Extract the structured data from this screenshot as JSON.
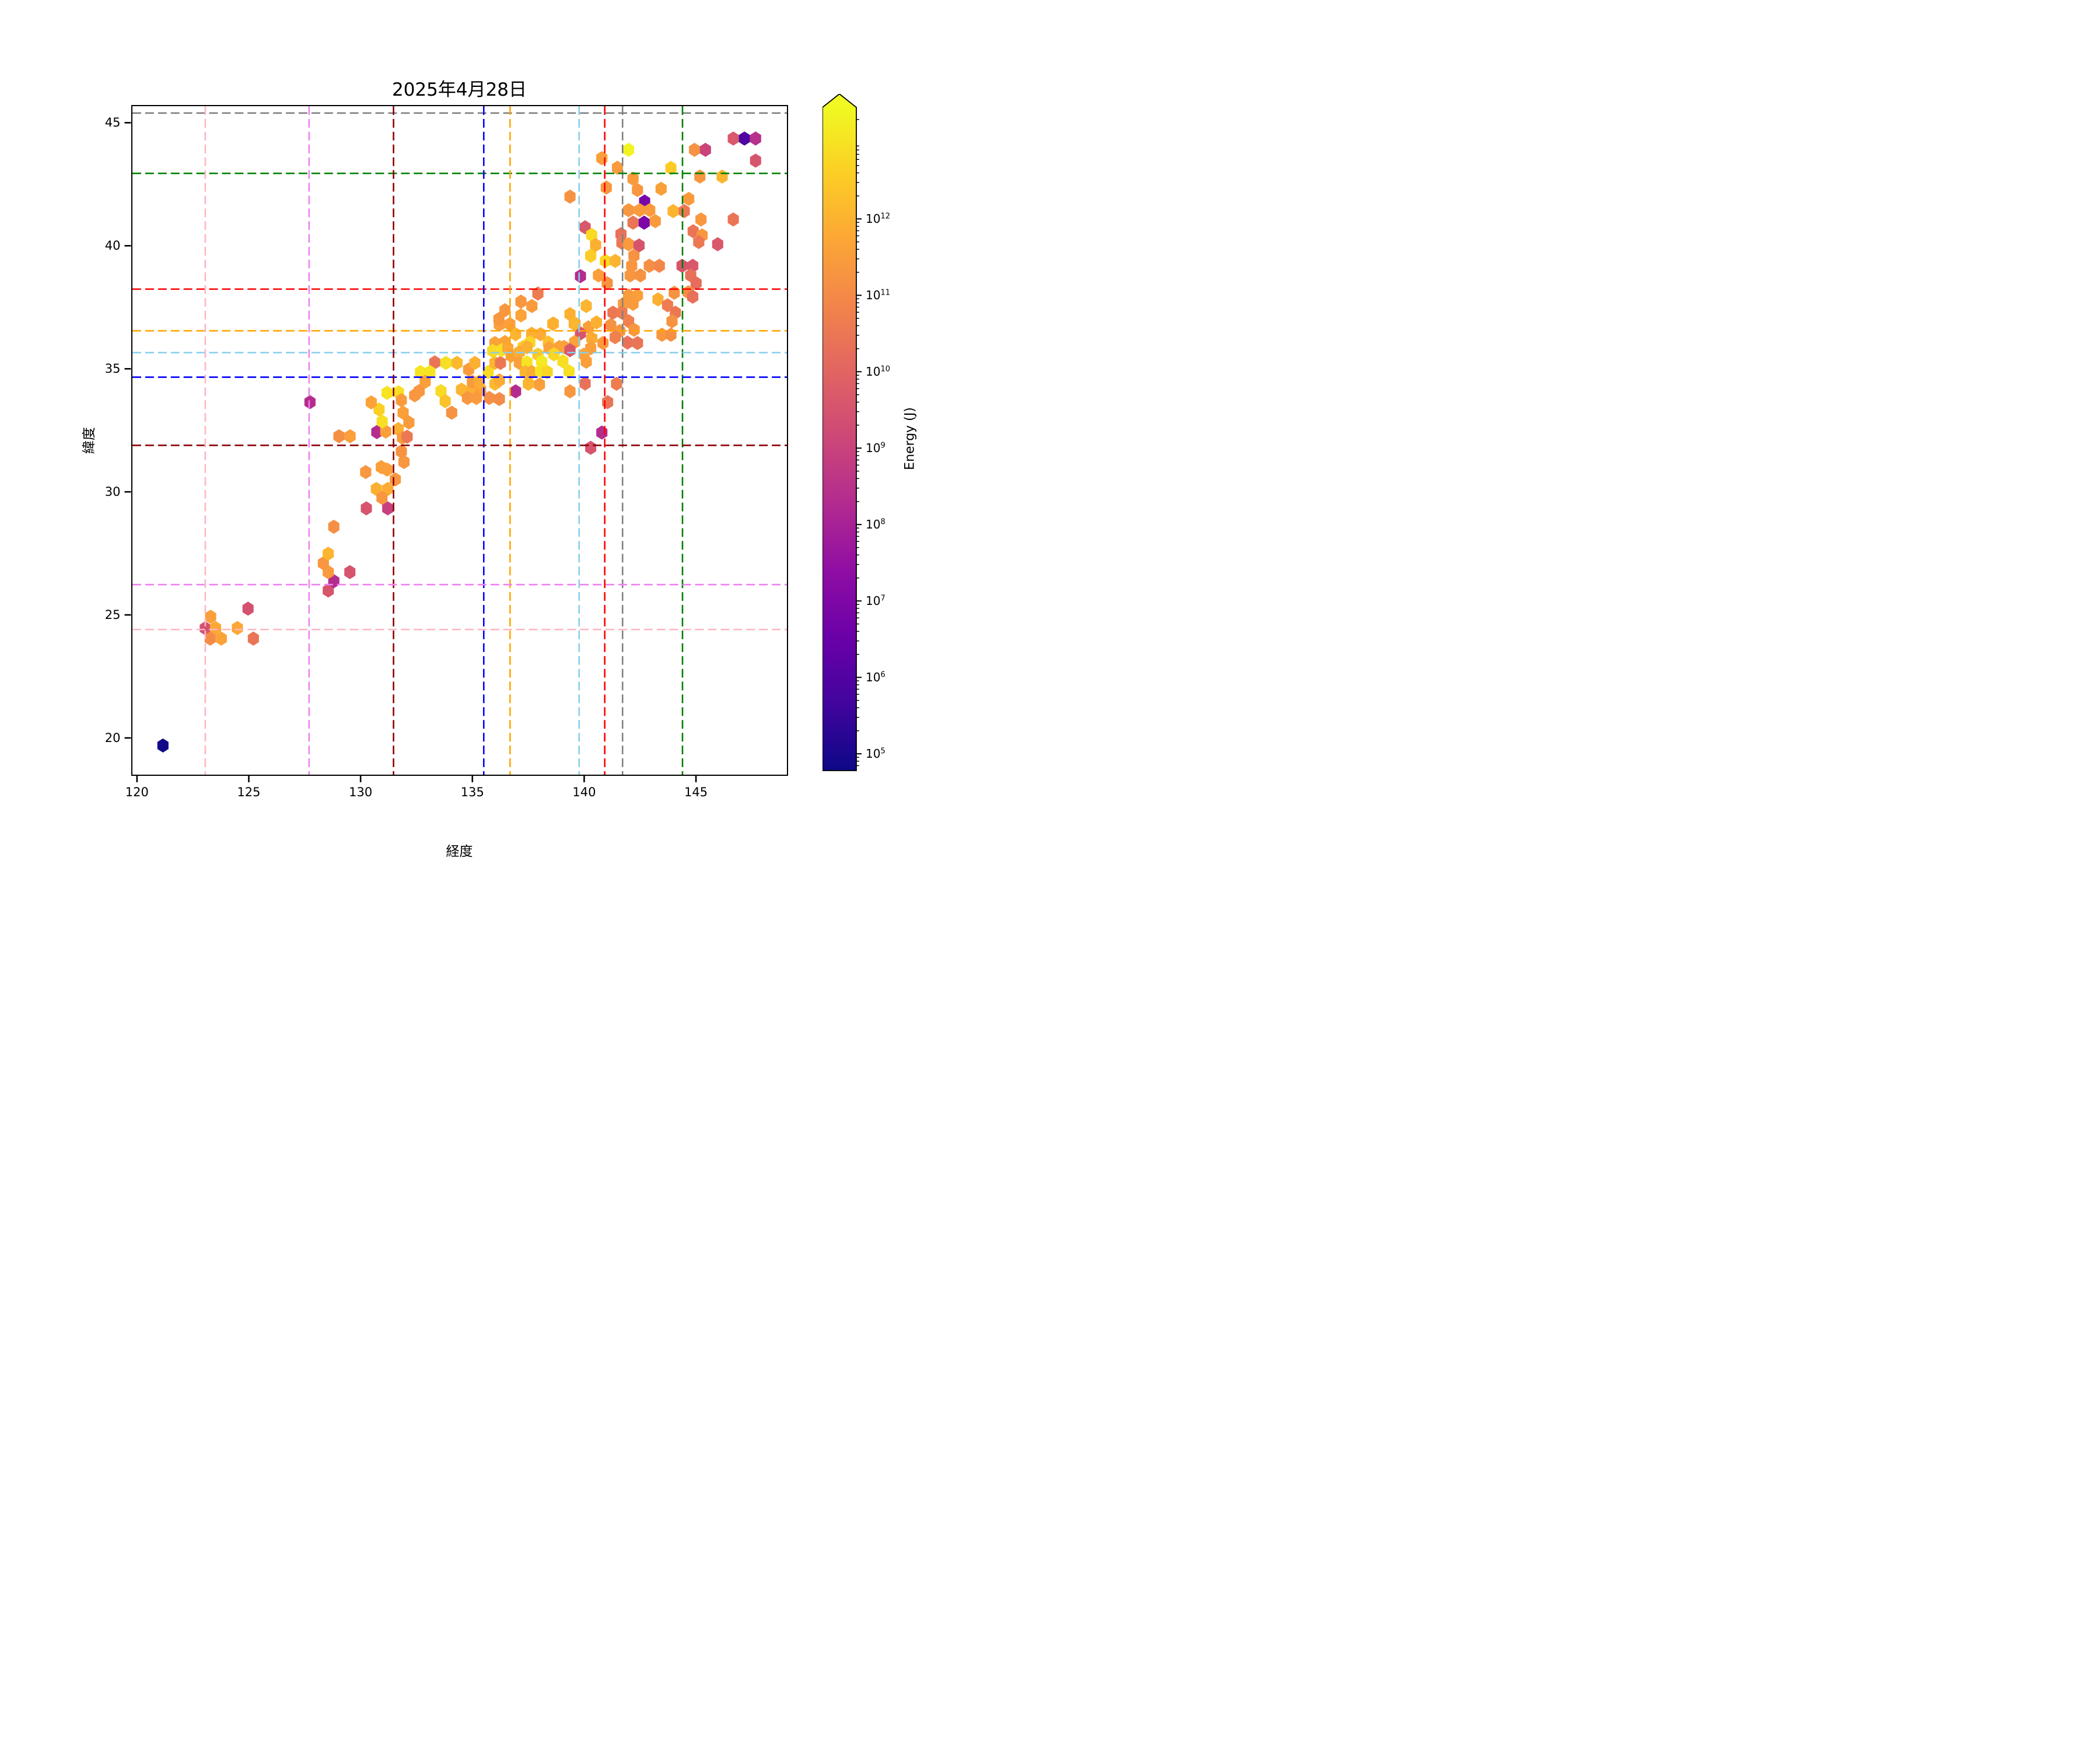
{
  "chart_data": {
    "type": "hexbin",
    "title": "2025年4月28日",
    "xlabel": "経度",
    "ylabel": "緯度",
    "xlim": [
      119.73,
      149.12
    ],
    "ylim": [
      18.46,
      45.72
    ],
    "xticks": [
      120,
      125,
      130,
      135,
      140,
      145
    ],
    "yticks": [
      20,
      25,
      30,
      35,
      40,
      45
    ],
    "grid": false,
    "hex_width_deg": 0.5,
    "colormap": "plasma_r",
    "colormap_stops": [
      "#0d0887",
      "#41049d",
      "#6a00a8",
      "#8f0da4",
      "#b12a90",
      "#cc4778",
      "#e16462",
      "#f2844b",
      "#fca636",
      "#fcce25",
      "#f0f921"
    ],
    "colorbar": {
      "label": "Energy (J)",
      "scale": "log",
      "tick_exponents": [
        5,
        6,
        7,
        8,
        9,
        10,
        11,
        12
      ],
      "log_min": 4.78,
      "log_max": 13.46,
      "extend": "max",
      "extend_color": "#0d0887"
    },
    "reference_lines": [
      {
        "color_name": "gray",
        "hex": "#808080",
        "lon": 141.73,
        "lat": 45.44
      },
      {
        "color_name": "green",
        "hex": "#008000",
        "lon": 144.42,
        "lat": 42.98
      },
      {
        "color_name": "red",
        "hex": "#ff0000",
        "lon": 140.93,
        "lat": 38.26
      },
      {
        "color_name": "orange",
        "hex": "#ffa500",
        "lon": 136.68,
        "lat": 36.56
      },
      {
        "color_name": "skyblue",
        "hex": "#87ceeb",
        "lon": 139.78,
        "lat": 35.67
      },
      {
        "color_name": "blue",
        "hex": "#0000ff",
        "lon": 135.5,
        "lat": 34.67
      },
      {
        "color_name": "darkred",
        "hex": "#8b0000",
        "lon": 131.45,
        "lat": 31.89
      },
      {
        "color_name": "violet",
        "hex": "#ee82ee",
        "lon": 127.66,
        "lat": 26.21
      },
      {
        "color_name": "pink",
        "hex": "#ffb6c1",
        "lon": 123.0,
        "lat": 24.38
      }
    ],
    "points_format": [
      "lon",
      "lat",
      "log10_energy_J"
    ],
    "points": [
      [
        121.1,
        19.65,
        13.4
      ],
      [
        123.0,
        24.43,
        8.8
      ],
      [
        123.46,
        24.44,
        6.5
      ],
      [
        124.44,
        24.44,
        6.5
      ],
      [
        123.24,
        24.9,
        6.7
      ],
      [
        123.22,
        24.01,
        7.2
      ],
      [
        123.72,
        24.01,
        6.6
      ],
      [
        125.16,
        24.01,
        7.8
      ],
      [
        124.92,
        25.23,
        8.8
      ],
      [
        128.52,
        25.97,
        8.7
      ],
      [
        128.77,
        26.35,
        9.9
      ],
      [
        128.52,
        26.72,
        6.8
      ],
      [
        129.49,
        26.72,
        8.7
      ],
      [
        128.3,
        27.08,
        6.9
      ],
      [
        128.52,
        27.47,
        6.2
      ],
      [
        128.77,
        28.57,
        7.1
      ],
      [
        130.23,
        29.32,
        8.7
      ],
      [
        131.19,
        29.32,
        9.3
      ],
      [
        130.68,
        30.11,
        6.3
      ],
      [
        131.19,
        30.11,
        6.4
      ],
      [
        130.93,
        29.75,
        6.9
      ],
      [
        130.2,
        30.8,
        6.9
      ],
      [
        131.16,
        30.9,
        6.7
      ],
      [
        131.53,
        30.5,
        6.9
      ],
      [
        130.9,
        31.0,
        6.7
      ],
      [
        131.92,
        31.21,
        6.9
      ],
      [
        131.8,
        31.64,
        7.0
      ],
      [
        130.7,
        32.43,
        9.9
      ],
      [
        131.1,
        32.45,
        6.7
      ],
      [
        131.66,
        32.55,
        6.3
      ],
      [
        131.85,
        32.2,
        6.8
      ],
      [
        132.06,
        32.24,
        7.7
      ],
      [
        130.94,
        32.86,
        5.3
      ],
      [
        130.8,
        33.35,
        5.6
      ],
      [
        130.45,
        33.64,
        6.6
      ],
      [
        129.0,
        32.26,
        7.1
      ],
      [
        129.5,
        32.26,
        6.7
      ],
      [
        131.16,
        34.03,
        5.2
      ],
      [
        131.67,
        34.05,
        5.3
      ],
      [
        131.8,
        33.73,
        6.8
      ],
      [
        132.4,
        33.93,
        6.9
      ],
      [
        131.88,
        33.22,
        6.7
      ],
      [
        132.14,
        32.82,
        6.8
      ],
      [
        127.7,
        33.65,
        9.9
      ],
      [
        133.3,
        35.27,
        7.8
      ],
      [
        133.8,
        35.25,
        5.3
      ],
      [
        134.3,
        35.25,
        6.1
      ],
      [
        132.66,
        34.88,
        5.2
      ],
      [
        133.08,
        34.88,
        5.2
      ],
      [
        132.87,
        34.48,
        6.7
      ],
      [
        132.6,
        34.1,
        6.9
      ],
      [
        133.58,
        34.1,
        5.4
      ],
      [
        133.77,
        33.69,
        5.9
      ],
      [
        134.06,
        33.22,
        7.0
      ],
      [
        134.5,
        34.16,
        6.2
      ],
      [
        134.97,
        34.15,
        6.3
      ],
      [
        135.36,
        34.15,
        6.6
      ],
      [
        134.77,
        33.82,
        6.9
      ],
      [
        135.17,
        33.82,
        6.8
      ],
      [
        135.75,
        33.82,
        7.1
      ],
      [
        136.2,
        33.78,
        7.2
      ],
      [
        134.99,
        34.48,
        6.8
      ],
      [
        135.3,
        34.48,
        6.4
      ],
      [
        134.82,
        34.98,
        6.8
      ],
      [
        135.1,
        35.25,
        6.3
      ],
      [
        135.7,
        34.88,
        5.4
      ],
      [
        136.0,
        35.25,
        6.2
      ],
      [
        136.25,
        35.25,
        7.7
      ],
      [
        136.2,
        36.81,
        6.7
      ],
      [
        136.67,
        36.83,
        6.7
      ],
      [
        138.6,
        36.84,
        6.3
      ],
      [
        139.56,
        36.85,
        6.5
      ],
      [
        140.2,
        36.7,
        6.7
      ],
      [
        141.2,
        36.79,
        7.0
      ],
      [
        141.6,
        36.55,
        6.9
      ],
      [
        136.93,
        36.42,
        6.2
      ],
      [
        137.65,
        36.44,
        6.3
      ],
      [
        138.05,
        36.42,
        6.4
      ],
      [
        139.84,
        36.45,
        8.7
      ],
      [
        140.35,
        36.25,
        6.4
      ],
      [
        136.0,
        36.06,
        6.6
      ],
      [
        136.45,
        36.1,
        6.6
      ],
      [
        137.27,
        35.9,
        5.7
      ],
      [
        137.57,
        36.08,
        5.5
      ],
      [
        138.4,
        36.08,
        6.0
      ],
      [
        139.1,
        35.9,
        6.7
      ],
      [
        139.58,
        36.1,
        6.6
      ],
      [
        140.85,
        36.06,
        6.8
      ],
      [
        141.4,
        36.3,
        7.5
      ],
      [
        141.95,
        36.08,
        7.9
      ],
      [
        142.4,
        36.06,
        7.8
      ],
      [
        135.9,
        35.74,
        5.4
      ],
      [
        136.3,
        35.77,
        5.3
      ],
      [
        136.58,
        35.85,
        6.5
      ],
      [
        137.44,
        35.89,
        6.3
      ],
      [
        138.43,
        35.85,
        6.6
      ],
      [
        138.9,
        35.9,
        6.6
      ],
      [
        139.37,
        35.77,
        8.6
      ],
      [
        140.3,
        35.85,
        6.7
      ],
      [
        136.73,
        35.54,
        6.7
      ],
      [
        137.1,
        35.69,
        6.3
      ],
      [
        137.93,
        35.59,
        5.8
      ],
      [
        138.65,
        35.6,
        5.5
      ],
      [
        140.0,
        35.59,
        6.6
      ],
      [
        140.1,
        35.3,
        6.7
      ],
      [
        137.1,
        35.25,
        6.7
      ],
      [
        137.44,
        35.27,
        5.2
      ],
      [
        138.1,
        35.3,
        5.1
      ],
      [
        139.05,
        35.32,
        5.3
      ],
      [
        137.36,
        34.88,
        6.2
      ],
      [
        137.66,
        34.88,
        6.4
      ],
      [
        138.05,
        34.92,
        5.2
      ],
      [
        138.35,
        34.88,
        5.5
      ],
      [
        139.33,
        34.9,
        5.3
      ],
      [
        136.0,
        34.4,
        6.1
      ],
      [
        136.2,
        34.54,
        6.4
      ],
      [
        137.5,
        34.4,
        6.2
      ],
      [
        138.0,
        34.37,
        6.7
      ],
      [
        139.37,
        34.09,
        6.9
      ],
      [
        136.93,
        34.09,
        9.9
      ],
      [
        140.05,
        34.41,
        7.9
      ],
      [
        141.46,
        34.4,
        7.6
      ],
      [
        141.06,
        33.65,
        7.8
      ],
      [
        140.8,
        32.41,
        9.9
      ],
      [
        140.3,
        31.79,
        8.7
      ],
      [
        137.93,
        38.08,
        7.6
      ],
      [
        137.17,
        37.75,
        6.9
      ],
      [
        137.66,
        37.57,
        6.8
      ],
      [
        136.45,
        37.4,
        6.9
      ],
      [
        136.18,
        37.04,
        6.9
      ],
      [
        137.17,
        37.19,
        6.6
      ],
      [
        140.1,
        37.57,
        6.2
      ],
      [
        139.37,
        37.24,
        6.3
      ],
      [
        139.6,
        36.86,
        6.2
      ],
      [
        138.62,
        36.86,
        6.3
      ],
      [
        140.56,
        36.9,
        6.3
      ],
      [
        139.84,
        38.79,
        9.9
      ],
      [
        140.65,
        38.82,
        6.7
      ],
      [
        141.04,
        38.5,
        7.0
      ],
      [
        140.05,
        40.78,
        8.6
      ],
      [
        140.34,
        40.47,
        5.4
      ],
      [
        140.52,
        40.06,
        6.3
      ],
      [
        140.3,
        39.62,
        5.7
      ],
      [
        140.96,
        39.41,
        5.5
      ],
      [
        141.4,
        39.41,
        6.2
      ],
      [
        141.66,
        40.5,
        7.9
      ],
      [
        141.7,
        40.15,
        7.7
      ],
      [
        142.0,
        40.09,
        6.8
      ],
      [
        142.47,
        40.04,
        8.7
      ],
      [
        142.24,
        39.62,
        7.0
      ],
      [
        142.14,
        39.21,
        6.9
      ],
      [
        142.07,
        38.82,
        6.9
      ],
      [
        142.53,
        38.82,
        7.0
      ],
      [
        142.93,
        39.21,
        7.1
      ],
      [
        143.38,
        39.21,
        7.3
      ],
      [
        144.4,
        39.21,
        8.7
      ],
      [
        144.88,
        39.21,
        8.6
      ],
      [
        144.79,
        38.82,
        7.9
      ],
      [
        145.03,
        38.5,
        8.0
      ],
      [
        144.68,
        38.13,
        7.1
      ],
      [
        144.88,
        37.95,
        7.9
      ],
      [
        144.05,
        38.11,
        7.0
      ],
      [
        143.32,
        37.84,
        6.3
      ],
      [
        143.75,
        37.6,
        7.6
      ],
      [
        144.1,
        37.3,
        7.7
      ],
      [
        143.95,
        36.95,
        7.0
      ],
      [
        143.5,
        36.4,
        6.9
      ],
      [
        143.9,
        36.4,
        7.1
      ],
      [
        142.0,
        38.0,
        6.8
      ],
      [
        142.4,
        38.0,
        6.7
      ],
      [
        141.77,
        37.66,
        6.8
      ],
      [
        142.2,
        37.66,
        6.8
      ],
      [
        141.3,
        37.3,
        7.7
      ],
      [
        141.7,
        37.3,
        7.6
      ],
      [
        142.0,
        36.95,
        7.5
      ],
      [
        142.25,
        36.6,
        6.9
      ],
      [
        142.0,
        43.94,
        4.9
      ],
      [
        141.5,
        43.21,
        6.8
      ],
      [
        140.8,
        43.6,
        6.7
      ],
      [
        141.0,
        42.4,
        6.9
      ],
      [
        139.37,
        42.03,
        7.0
      ],
      [
        143.9,
        43.2,
        5.7
      ],
      [
        144.96,
        43.94,
        7.0
      ],
      [
        145.45,
        43.94,
        9.2
      ],
      [
        146.7,
        44.4,
        8.6
      ],
      [
        147.2,
        44.4,
        12.3
      ],
      [
        147.7,
        44.4,
        9.8
      ],
      [
        147.7,
        43.5,
        8.7
      ],
      [
        145.2,
        42.85,
        6.9
      ],
      [
        146.2,
        42.85,
        6.2
      ],
      [
        142.2,
        42.76,
        6.8
      ],
      [
        142.4,
        42.3,
        6.9
      ],
      [
        143.46,
        42.35,
        6.7
      ],
      [
        142.72,
        41.83,
        11.4
      ],
      [
        142.0,
        41.48,
        6.9
      ],
      [
        142.5,
        41.48,
        6.8
      ],
      [
        142.95,
        41.48,
        6.8
      ],
      [
        142.2,
        40.97,
        7.8
      ],
      [
        142.7,
        40.97,
        11.3
      ],
      [
        143.2,
        41.03,
        6.8
      ],
      [
        144.0,
        41.44,
        6.2
      ],
      [
        144.5,
        41.44,
        7.7
      ],
      [
        144.7,
        41.94,
        6.8
      ],
      [
        145.25,
        41.1,
        6.9
      ],
      [
        146.7,
        41.1,
        7.8
      ],
      [
        144.9,
        40.62,
        7.8
      ],
      [
        145.3,
        40.45,
        6.9
      ],
      [
        145.15,
        40.18,
        7.7
      ],
      [
        146.0,
        40.09,
        8.6
      ]
    ]
  }
}
